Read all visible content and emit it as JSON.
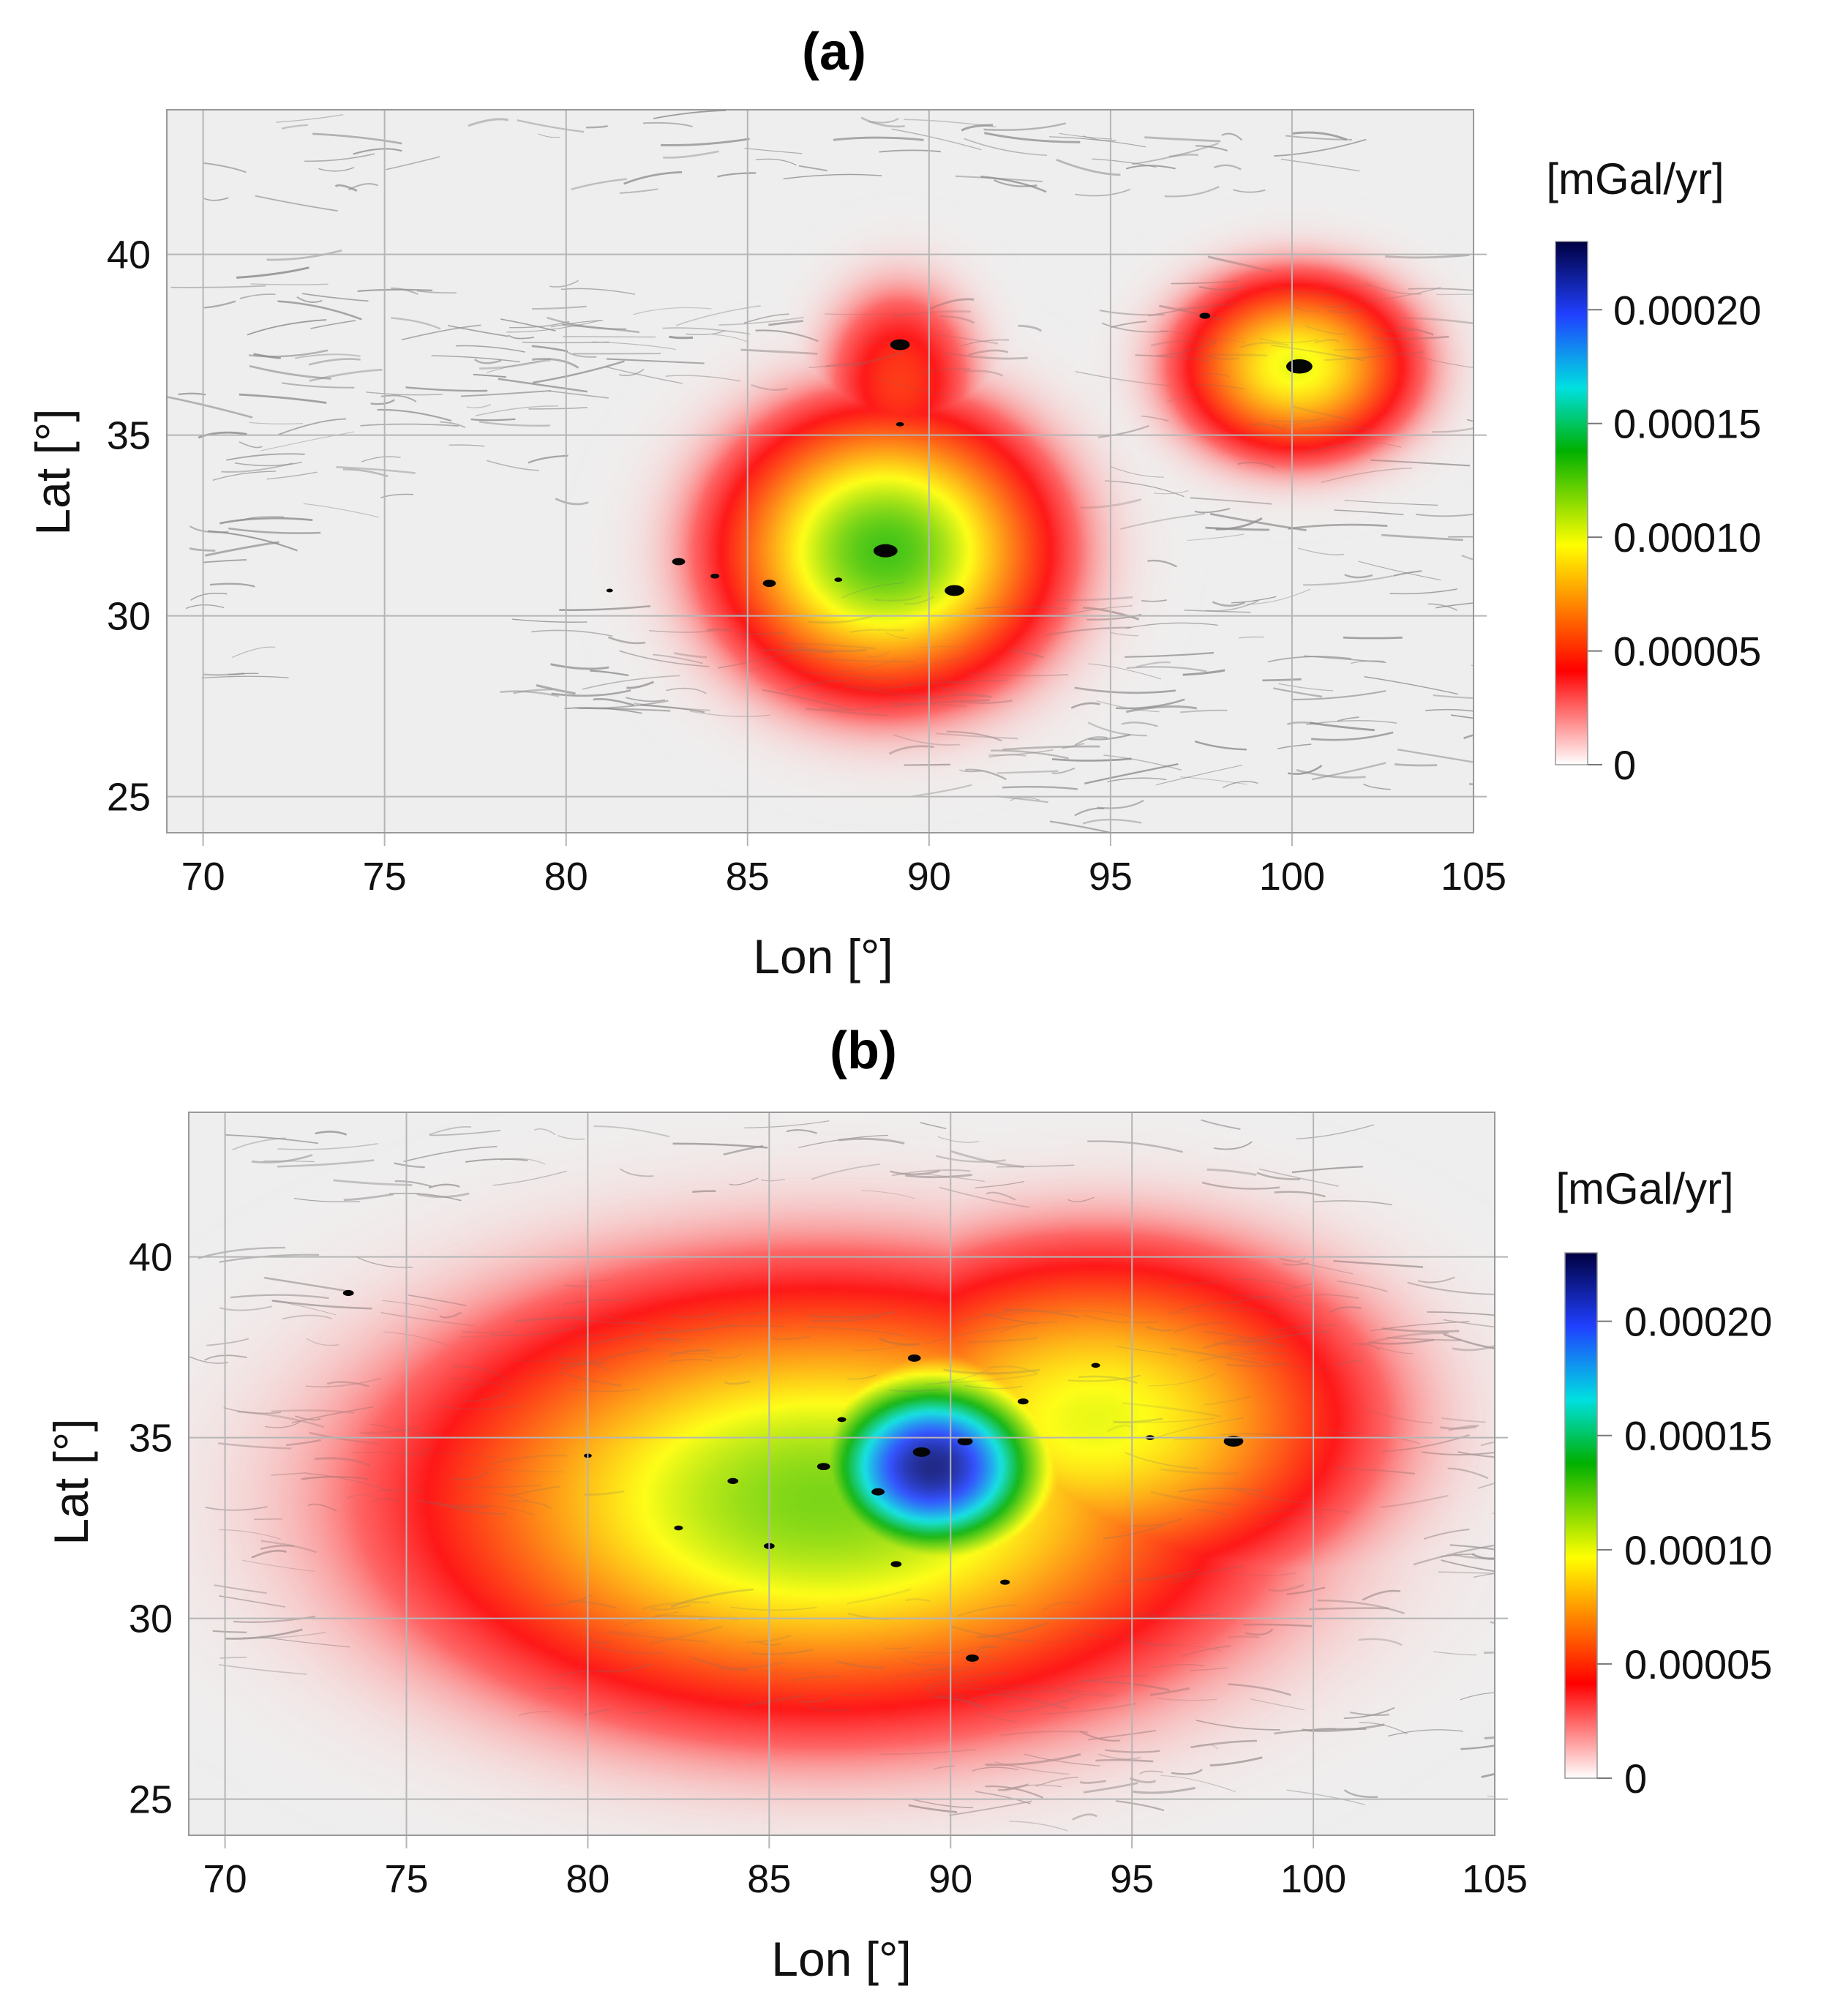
{
  "figure": {
    "panels": [
      "(a)",
      "(b)"
    ]
  },
  "colors": {
    "ridge": "#8a8a8a",
    "background": "#eeeeee",
    "grid": "#b5b5b5",
    "lakes": "#050505"
  },
  "chart_data": [
    {
      "type": "heatmap",
      "title": "(a)",
      "xlabel": "Lon [°]",
      "ylabel": "Lat [°]",
      "xlim": [
        69,
        105
      ],
      "ylim": [
        24,
        44
      ],
      "xticks": [
        70,
        75,
        80,
        85,
        90,
        95,
        100,
        105
      ],
      "yticks": [
        25,
        30,
        35,
        40
      ],
      "grid": true,
      "colorbar": {
        "label": "[mGal/yr]",
        "range": [
          0,
          0.00023
        ],
        "ticks": [
          0,
          5e-05,
          0.0001,
          0.00015,
          0.0002
        ],
        "tick_labels": [
          "0",
          "0.00005",
          "0.00010",
          "0.00015",
          "0.00020"
        ],
        "colors": [
          "#ffffff",
          "#ff0000",
          "#ffff00",
          "#00b000",
          "#00e0e0",
          "#2040ff",
          "#000040"
        ]
      },
      "signal_centers": [
        {
          "lon": 88.8,
          "lat": 31.8,
          "peak": 0.00013,
          "radius_lon": 3.0,
          "radius_lat": 2.6
        },
        {
          "lon": 100.1,
          "lat": 36.9,
          "peak": 0.0001,
          "radius_lon": 2.2,
          "radius_lat": 1.7
        },
        {
          "lon": 89.2,
          "lat": 36.5,
          "peak": 5e-05,
          "radius_lon": 1.6,
          "radius_lat": 2.0
        }
      ],
      "lakes": [
        {
          "lon": 88.8,
          "lat": 31.8,
          "size": 0.55
        },
        {
          "lon": 89.2,
          "lat": 37.5,
          "size": 0.45
        },
        {
          "lon": 100.2,
          "lat": 36.9,
          "size": 0.6
        },
        {
          "lon": 97.6,
          "lat": 38.3,
          "size": 0.25
        },
        {
          "lon": 90.7,
          "lat": 30.7,
          "size": 0.45
        },
        {
          "lon": 85.6,
          "lat": 30.9,
          "size": 0.3
        },
        {
          "lon": 83.1,
          "lat": 31.5,
          "size": 0.3
        },
        {
          "lon": 84.1,
          "lat": 31.1,
          "size": 0.2
        },
        {
          "lon": 81.2,
          "lat": 30.7,
          "size": 0.15
        },
        {
          "lon": 89.2,
          "lat": 35.3,
          "size": 0.18
        },
        {
          "lon": 87.5,
          "lat": 31.0,
          "size": 0.18
        }
      ]
    },
    {
      "type": "heatmap",
      "title": "(b)",
      "xlabel": "Lon [°]",
      "ylabel": "Lat [°]",
      "xlim": [
        69,
        105
      ],
      "ylim": [
        24,
        44
      ],
      "xticks": [
        70,
        75,
        80,
        85,
        90,
        95,
        100,
        105
      ],
      "yticks": [
        25,
        30,
        35,
        40
      ],
      "grid": true,
      "colorbar": {
        "label": "[mGal/yr]",
        "range": [
          0,
          0.00023
        ],
        "ticks": [
          0,
          5e-05,
          0.0001,
          0.00015,
          0.0002
        ],
        "tick_labels": [
          "0",
          "0.00005",
          "0.00010",
          "0.00015",
          "0.00020"
        ],
        "colors": [
          "#ffffff",
          "#ff0000",
          "#ffff00",
          "#00b000",
          "#00e0e0",
          "#2040ff",
          "#000040"
        ]
      },
      "signal_centers": [
        {
          "lon": 89.5,
          "lat": 34.2,
          "peak": 0.00022,
          "radius_lon": 2.5,
          "radius_lat": 2.0
        },
        {
          "lon": 86.5,
          "lat": 33.3,
          "peak": 0.00012,
          "radius_lon": 7.5,
          "radius_lat": 4.0
        },
        {
          "lon": 94.0,
          "lat": 35.5,
          "peak": 0.0001,
          "radius_lon": 5.0,
          "radius_lat": 3.2
        },
        {
          "lon": 82.0,
          "lat": 33.5,
          "peak": 8e-05,
          "radius_lon": 3.5,
          "radius_lat": 3.0
        }
      ],
      "lakes": [
        {
          "lon": 89.2,
          "lat": 34.6,
          "size": 0.4
        },
        {
          "lon": 90.4,
          "lat": 34.9,
          "size": 0.35
        },
        {
          "lon": 88.0,
          "lat": 33.5,
          "size": 0.3
        },
        {
          "lon": 86.5,
          "lat": 34.2,
          "size": 0.3
        },
        {
          "lon": 84.0,
          "lat": 33.8,
          "size": 0.25
        },
        {
          "lon": 97.8,
          "lat": 34.9,
          "size": 0.45
        },
        {
          "lon": 90.6,
          "lat": 28.9,
          "size": 0.3
        },
        {
          "lon": 73.4,
          "lat": 39.0,
          "size": 0.25
        },
        {
          "lon": 89.0,
          "lat": 37.2,
          "size": 0.3
        },
        {
          "lon": 92.0,
          "lat": 36.0,
          "size": 0.25
        },
        {
          "lon": 94.0,
          "lat": 37.0,
          "size": 0.2
        },
        {
          "lon": 85.0,
          "lat": 32.0,
          "size": 0.25
        },
        {
          "lon": 88.5,
          "lat": 31.5,
          "size": 0.25
        },
        {
          "lon": 91.5,
          "lat": 31.0,
          "size": 0.22
        },
        {
          "lon": 82.5,
          "lat": 32.5,
          "size": 0.2
        },
        {
          "lon": 80.0,
          "lat": 34.5,
          "size": 0.18
        },
        {
          "lon": 87.0,
          "lat": 35.5,
          "size": 0.2
        },
        {
          "lon": 95.5,
          "lat": 35.0,
          "size": 0.2
        }
      ]
    }
  ]
}
